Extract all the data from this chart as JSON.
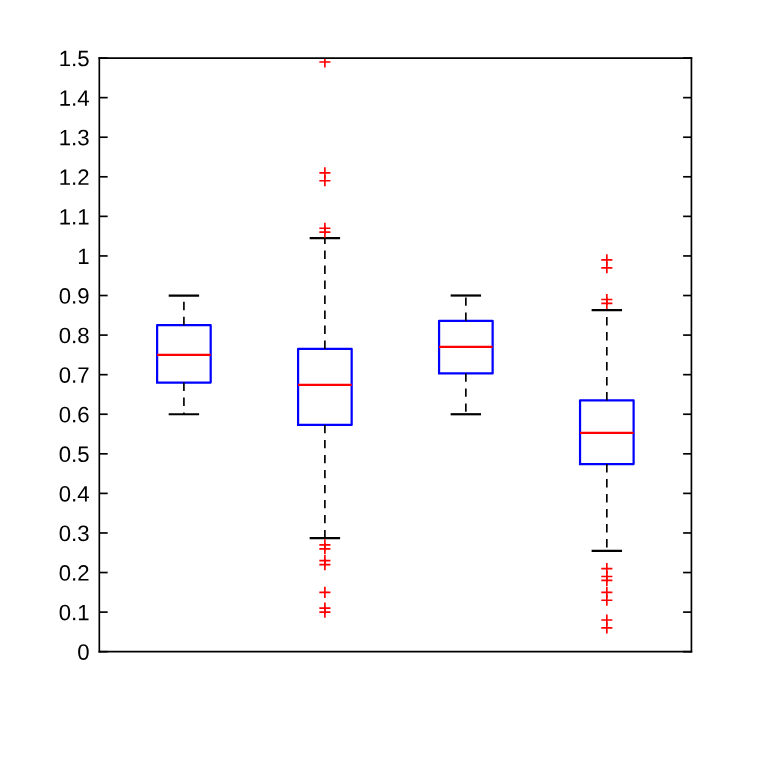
{
  "chart_data": {
    "type": "box",
    "categories": [
      null,
      null,
      null,
      null
    ],
    "boxes": [
      {
        "low": 0.6,
        "q1": 0.68,
        "median": 0.75,
        "q3": 0.825,
        "high": 0.9
      },
      {
        "low": 0.287,
        "q1": 0.573,
        "median": 0.674,
        "q3": 0.765,
        "high": 1.045,
        "outliers": [
          1.49,
          1.21,
          1.19,
          1.07,
          1.06,
          0.27,
          0.26,
          0.23,
          0.22,
          0.15,
          0.11,
          0.1
        ]
      },
      {
        "low": 0.6,
        "q1": 0.703,
        "median": 0.77,
        "q3": 0.836,
        "high": 0.9
      },
      {
        "low": 0.255,
        "q1": 0.474,
        "median": 0.553,
        "q3": 0.635,
        "high": 0.863,
        "outliers": [
          0.99,
          0.97,
          0.89,
          0.88,
          0.21,
          0.19,
          0.18,
          0.15,
          0.13,
          0.08,
          0.06
        ]
      }
    ],
    "ylim": [
      0,
      1.5
    ],
    "yticks": [
      0,
      0.1,
      0.2,
      0.3,
      0.4,
      0.5,
      0.6,
      0.7,
      0.8,
      0.9,
      1,
      1.1,
      1.2,
      1.3,
      1.4,
      1.5
    ],
    "grid": false,
    "marker": "cross",
    "line_style": "dashed"
  }
}
